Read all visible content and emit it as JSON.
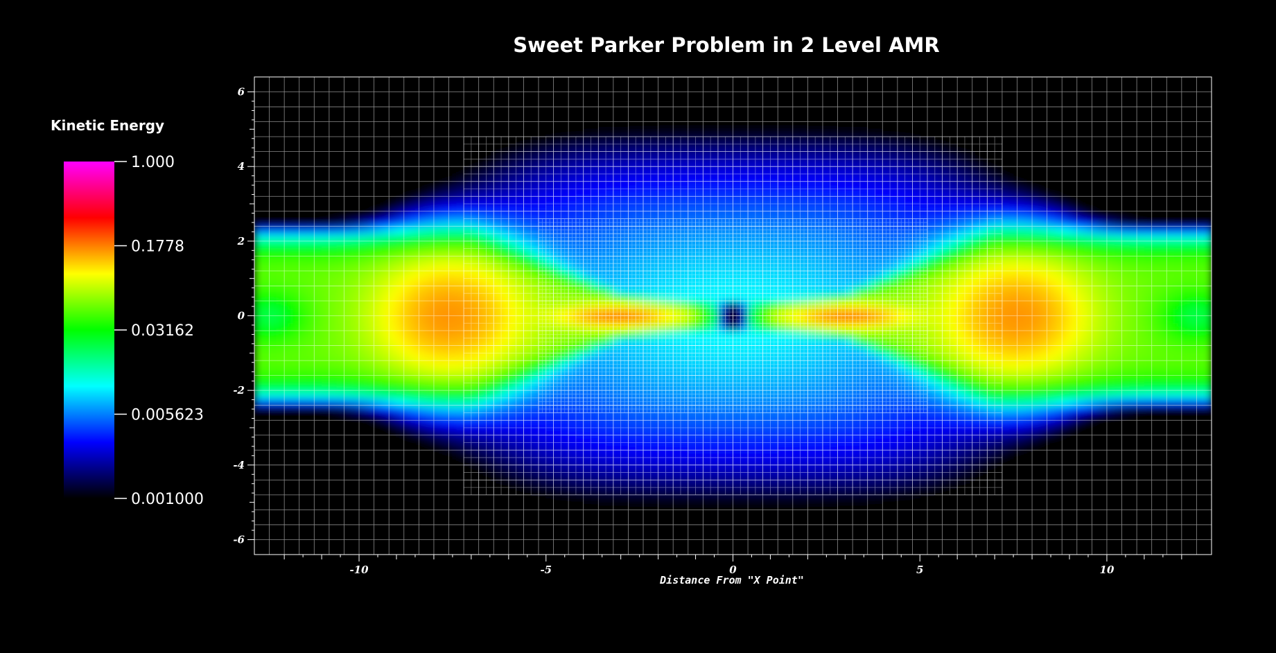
{
  "chart_data": {
    "type": "heatmap",
    "title": "Sweet Parker Problem in 2 Level AMR",
    "xlabel": "Distance From \"X Point\"",
    "ylabel": "",
    "xlim": [
      -12.8,
      12.8
    ],
    "ylim": [
      -6.4,
      6.4
    ],
    "x_ticks": [
      -10,
      -5,
      0,
      5,
      10
    ],
    "x_tick_labels": [
      "-10",
      "-5",
      "0",
      "5",
      "10"
    ],
    "y_ticks": [
      6,
      4,
      2,
      0,
      -2,
      -4,
      -6
    ],
    "y_tick_labels": [
      "6",
      "4",
      "2",
      "0",
      "-2",
      "-4",
      "-6"
    ],
    "grid": true,
    "colorbar": {
      "title": "Kinetic Energy",
      "scale": "log",
      "min": 0.001,
      "max": 1.0,
      "labels": [
        "1.000",
        "0.1778",
        "0.03162",
        "0.005623",
        "0.001000"
      ],
      "label_values": [
        1.0,
        0.1778,
        0.03162,
        0.005623,
        0.001
      ],
      "colors": [
        "#000000",
        "#0000ff",
        "#00ffff",
        "#00ff00",
        "#ffff00",
        "#ff0000",
        "#ff00ff"
      ],
      "placement": "left"
    },
    "amr_levels": [
      {
        "level": 0,
        "x": [
          -12.8,
          12.8
        ],
        "y": [
          -6.4,
          6.4
        ],
        "cell": 0.4
      },
      {
        "level": 1,
        "x": [
          -7.2,
          7.2
        ],
        "y": [
          -4.8,
          4.8
        ],
        "cell": 0.2
      },
      {
        "level": 2,
        "x": [
          -5.2,
          5.2
        ],
        "y": [
          -2.6,
          2.6
        ],
        "cell": 0.1
      }
    ]
  }
}
